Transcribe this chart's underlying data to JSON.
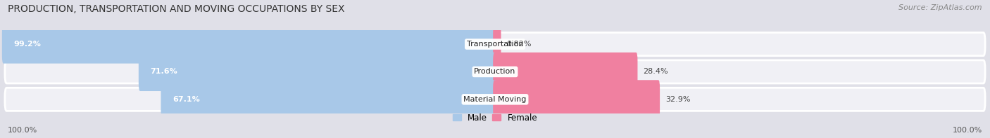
{
  "title": "PRODUCTION, TRANSPORTATION AND MOVING OCCUPATIONS BY SEX",
  "source": "Source: ZipAtlas.com",
  "categories": [
    "Transportation",
    "Production",
    "Material Moving"
  ],
  "male_pct": [
    99.2,
    71.6,
    67.1
  ],
  "female_pct": [
    0.82,
    28.4,
    32.9
  ],
  "male_color": "#a8c8e8",
  "female_color": "#f080a0",
  "bg_color": "#e0e0e8",
  "row_bg": "#f0f0f5",
  "title_fontsize": 10,
  "source_fontsize": 8,
  "label_fontsize": 8,
  "bar_label_fontsize": 8,
  "legend_fontsize": 8.5,
  "male_label": "Male",
  "female_label": "Female",
  "axis_label_left": "100.0%",
  "axis_label_right": "100.0%"
}
